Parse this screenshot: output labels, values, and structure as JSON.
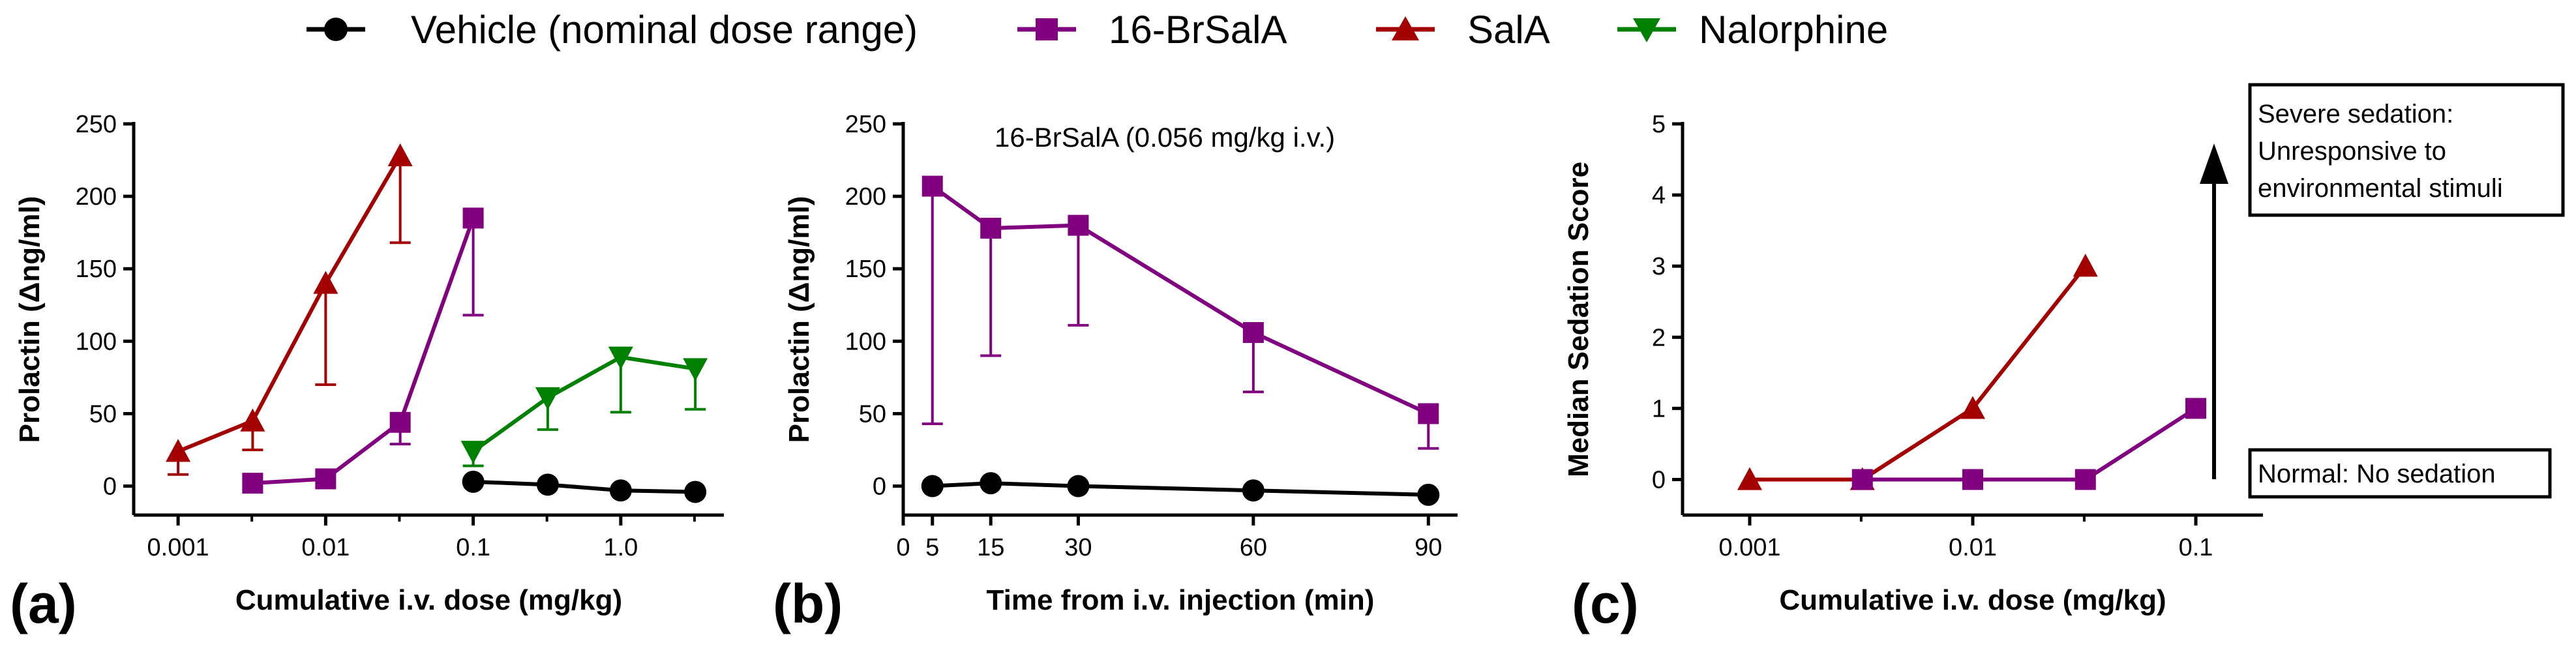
{
  "legend": [
    {
      "name": "Vehicle (nominal dose range)",
      "color": "#000000",
      "marker": "circle"
    },
    {
      "name": "16-BrSalA",
      "color": "#800080",
      "marker": "square"
    },
    {
      "name": "SalA",
      "color": "#a50000",
      "marker": "triangle-up"
    },
    {
      "name": "Nalorphine",
      "color": "#008000",
      "marker": "triangle-down"
    }
  ],
  "panels": {
    "a": {
      "letter": "(a)"
    },
    "b": {
      "letter": "(b)",
      "annotation": "16-BrSalA (0.056 mg/kg i.v.)"
    },
    "c": {
      "letter": "(c)",
      "top_box": [
        "Severe sedation:",
        "Unresponsive to",
        "environmental stimuli"
      ],
      "bottom_box": "Normal: No sedation"
    }
  },
  "chart_data": [
    {
      "id": "a",
      "type": "line",
      "xlabel": "Cumulative i.v. dose (mg/kg)",
      "ylabel": "Prolactin (Δng/ml)",
      "xscale": "log",
      "xlim": [
        0.0005,
        5
      ],
      "ylim": [
        -20,
        250
      ],
      "xticks": [
        0.001,
        0.01,
        0.1,
        1.0
      ],
      "xticklabels": [
        "0.001",
        "0.01",
        "0.1",
        "1.0"
      ],
      "yticks": [
        0,
        50,
        100,
        150,
        200,
        250
      ],
      "yticklabels": [
        "0",
        "50",
        "100",
        "150",
        "200",
        "250"
      ],
      "series": [
        {
          "name": "SalA",
          "color": "#a50000",
          "marker": "triangle-up",
          "points": [
            {
              "x": 0.001,
              "y": 24,
              "err": 16,
              "dir": "down"
            },
            {
              "x": 0.0032,
              "y": 45,
              "err": 20,
              "dir": "down"
            },
            {
              "x": 0.01,
              "y": 140,
              "err": 70,
              "dir": "down"
            },
            {
              "x": 0.032,
              "y": 228,
              "err": 60,
              "dir": "down"
            }
          ]
        },
        {
          "name": "16-BrSalA",
          "color": "#800080",
          "marker": "square",
          "points": [
            {
              "x": 0.0032,
              "y": 2,
              "err": 0,
              "dir": "down"
            },
            {
              "x": 0.01,
              "y": 5,
              "err": 0,
              "dir": "down"
            },
            {
              "x": 0.032,
              "y": 44,
              "err": 15,
              "dir": "down"
            },
            {
              "x": 0.1,
              "y": 185,
              "err": 67,
              "dir": "down"
            }
          ]
        },
        {
          "name": "Nalorphine",
          "color": "#008000",
          "marker": "triangle-down",
          "points": [
            {
              "x": 0.1,
              "y": 24,
              "err": 10,
              "dir": "down"
            },
            {
              "x": 0.32,
              "y": 61,
              "err": 22,
              "dir": "down"
            },
            {
              "x": 1.0,
              "y": 89,
              "err": 38,
              "dir": "down"
            },
            {
              "x": 3.2,
              "y": 81,
              "err": 28,
              "dir": "down"
            }
          ]
        },
        {
          "name": "Vehicle (nominal dose range)",
          "color": "#000000",
          "marker": "circle",
          "points": [
            {
              "x": 0.1,
              "y": 3,
              "err": 0,
              "dir": "down"
            },
            {
              "x": 0.32,
              "y": 1,
              "err": 0,
              "dir": "down"
            },
            {
              "x": 1.0,
              "y": -3,
              "err": 0,
              "dir": "down"
            },
            {
              "x": 3.2,
              "y": -4,
              "err": 0,
              "dir": "down"
            }
          ]
        }
      ]
    },
    {
      "id": "b",
      "type": "line",
      "xlabel": "Time from i.v. injection (min)",
      "ylabel": "Prolactin (Δng/ml)",
      "xscale": "linear",
      "xlim": [
        0,
        95
      ],
      "ylim": [
        -20,
        250
      ],
      "xticks": [
        0,
        5,
        15,
        30,
        60,
        90
      ],
      "xticklabels": [
        "0",
        "5",
        "15",
        "30",
        "60",
        "90"
      ],
      "yticks": [
        0,
        50,
        100,
        150,
        200,
        250
      ],
      "yticklabels": [
        "0",
        "50",
        "100",
        "150",
        "200",
        "250"
      ],
      "series": [
        {
          "name": "16-BrSalA",
          "color": "#800080",
          "marker": "square",
          "points": [
            {
              "x": 5,
              "y": 207,
              "err": 164,
              "dir": "down"
            },
            {
              "x": 15,
              "y": 178,
              "err": 88,
              "dir": "down"
            },
            {
              "x": 30,
              "y": 180,
              "err": 69,
              "dir": "down"
            },
            {
              "x": 60,
              "y": 106,
              "err": 41,
              "dir": "down"
            },
            {
              "x": 90,
              "y": 50,
              "err": 24,
              "dir": "down"
            }
          ]
        },
        {
          "name": "Vehicle (nominal dose range)",
          "color": "#000000",
          "marker": "circle",
          "points": [
            {
              "x": 5,
              "y": 0,
              "err": 0,
              "dir": "down"
            },
            {
              "x": 15,
              "y": 2,
              "err": 0,
              "dir": "down"
            },
            {
              "x": 30,
              "y": 0,
              "err": 0,
              "dir": "down"
            },
            {
              "x": 60,
              "y": -3,
              "err": 0,
              "dir": "down"
            },
            {
              "x": 90,
              "y": -6,
              "err": 0,
              "dir": "down"
            }
          ]
        }
      ]
    },
    {
      "id": "c",
      "type": "line",
      "xlabel": "Cumulative i.v. dose (mg/kg)",
      "ylabel": "Median Sedation Score",
      "xscale": "log",
      "xlim": [
        0.0005,
        0.2
      ],
      "ylim": [
        -0.5,
        5
      ],
      "xticks": [
        0.001,
        0.01,
        0.1
      ],
      "xticklabels": [
        "0.001",
        "0.01",
        "0.1"
      ],
      "yticks": [
        0,
        1,
        2,
        3,
        4,
        5
      ],
      "yticklabels": [
        "0",
        "1",
        "2",
        "3",
        "4",
        "5"
      ],
      "series": [
        {
          "name": "SalA",
          "color": "#a50000",
          "marker": "triangle-up",
          "points": [
            {
              "x": 0.001,
              "y": 0,
              "err": 0,
              "dir": "down"
            },
            {
              "x": 0.0032,
              "y": 0,
              "err": 0,
              "dir": "down"
            },
            {
              "x": 0.01,
              "y": 1,
              "err": 0,
              "dir": "down"
            },
            {
              "x": 0.032,
              "y": 3,
              "err": 0,
              "dir": "down"
            }
          ]
        },
        {
          "name": "16-BrSalA",
          "color": "#800080",
          "marker": "square",
          "points": [
            {
              "x": 0.0032,
              "y": 0,
              "err": 0,
              "dir": "down"
            },
            {
              "x": 0.01,
              "y": 0,
              "err": 0,
              "dir": "down"
            },
            {
              "x": 0.032,
              "y": 0,
              "err": 0,
              "dir": "down"
            },
            {
              "x": 0.1,
              "y": 1,
              "err": 0,
              "dir": "down"
            }
          ]
        }
      ]
    }
  ]
}
